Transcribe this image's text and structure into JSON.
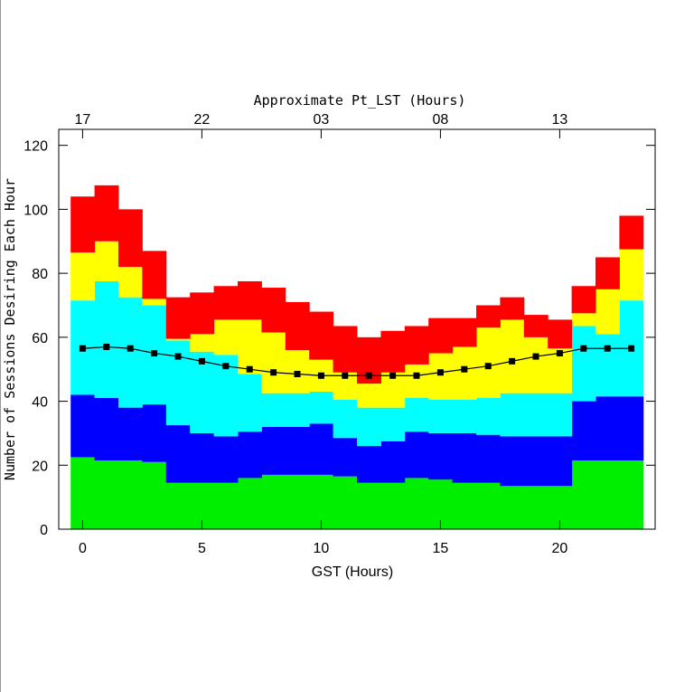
{
  "chart_data": {
    "type": "bar",
    "stacked": true,
    "x2label": "Approximate Pt_LST (Hours)",
    "xlabel": "GST (Hours)",
    "ylabel": "Number of Sessions Desiring Each Hour",
    "x": [
      0,
      1,
      2,
      3,
      4,
      5,
      6,
      7,
      8,
      9,
      10,
      11,
      12,
      13,
      14,
      15,
      16,
      17,
      18,
      19,
      20,
      21,
      22,
      23
    ],
    "series": [
      {
        "color": "#00ee00",
        "values": [
          22.5,
          21.5,
          21.5,
          21,
          14.5,
          14.5,
          14.5,
          16,
          17,
          17,
          17,
          16.5,
          14.5,
          14.5,
          16,
          15.5,
          14.5,
          14.5,
          13.5,
          13.5,
          13.5,
          21.5,
          21.5,
          21.5
        ]
      },
      {
        "color": "#0000ff",
        "values": [
          19.5,
          19.5,
          16.5,
          18,
          18,
          15.5,
          14.5,
          14.5,
          15,
          15,
          16,
          12,
          11.5,
          13,
          14.5,
          14.5,
          15.5,
          15,
          15.5,
          15.5,
          15.5,
          18.5,
          20,
          20
        ]
      },
      {
        "color": "#00ffff",
        "values": [
          29.5,
          36.5,
          34.5,
          31,
          26.5,
          25.5,
          25.5,
          18,
          10.5,
          10.5,
          10,
          12,
          12,
          10.5,
          10.5,
          10.5,
          10.5,
          11.5,
          13.5,
          13.5,
          13.5,
          23.5,
          19.5,
          30
        ]
      },
      {
        "color": "#ffff00",
        "values": [
          15,
          12.5,
          9.5,
          2,
          0.5,
          5.5,
          11,
          17,
          19,
          13.5,
          10,
          8.5,
          7.5,
          11,
          10.5,
          14.5,
          16.5,
          22,
          23,
          17.5,
          14,
          4,
          14,
          16
        ]
      },
      {
        "color": "#ff0000",
        "values": [
          17.5,
          17.5,
          18,
          15,
          13,
          13,
          10.5,
          12,
          14,
          15,
          15,
          14.5,
          14.5,
          13,
          12,
          11,
          9,
          7,
          7,
          7,
          9,
          8.5,
          10,
          10.5
        ]
      },
      {
        "type": "line",
        "color": "#000000",
        "values": [
          56.5,
          57,
          56.5,
          55,
          54,
          52.5,
          51,
          50,
          49,
          48.5,
          48,
          48,
          48,
          48,
          48,
          49,
          50,
          51,
          52.5,
          54,
          55,
          56.5,
          56.5,
          56.5
        ]
      }
    ],
    "xlim": [
      -1,
      24
    ],
    "xticks": [
      0,
      5,
      10,
      15,
      20
    ],
    "x2ticks": [
      {
        "value": 0,
        "label": "17"
      },
      {
        "value": 5,
        "label": "22"
      },
      {
        "value": 10,
        "label": "03"
      },
      {
        "value": 15,
        "label": "08"
      },
      {
        "value": 20,
        "label": "13"
      }
    ],
    "ylim": [
      0,
      125
    ],
    "yticks": [
      0,
      20,
      40,
      60,
      80,
      100,
      120
    ]
  }
}
